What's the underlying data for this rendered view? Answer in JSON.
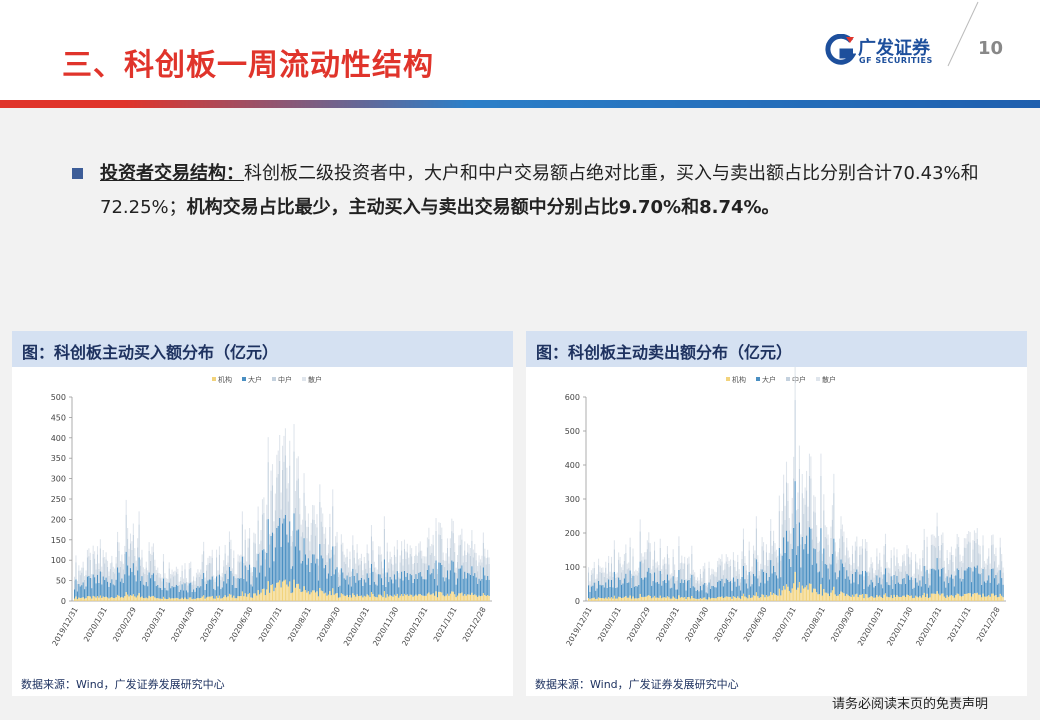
{
  "header": {
    "title": "三、科创板一周流动性结构",
    "logo_cn": "广发证券",
    "logo_en": "GF SECURITIES",
    "page_number": "10"
  },
  "bullet": {
    "key_label": "投资者交易结构：",
    "text1": "科创板二级投资者中，大户和中户交易额占绝对比重，买入与卖出额占比分别合计70.43%和72.25%；",
    "text2": "机构交易占比最少，主动买入与卖出交易额中分别占比9.70%和8.74%。"
  },
  "colors": {
    "title_red": "#e0342b",
    "inst": "#f2d37c",
    "large": "#4a8fc2",
    "medium": "#c4d1de",
    "retail": "#dfe5ec"
  },
  "chart_data": [
    {
      "type": "area",
      "title": "图：科创板主动买入额分布（亿元）",
      "source": "数据来源：Wind，广发证券发展研究中心",
      "legend": [
        "机构",
        "大户",
        "中户",
        "散户"
      ],
      "legend_position": "top-center",
      "ylim": [
        0,
        500
      ],
      "yticks": [
        0,
        50,
        100,
        150,
        200,
        250,
        300,
        350,
        400,
        450,
        500
      ],
      "x": [
        "2019/12/31",
        "2020/1/31",
        "2020/2/29",
        "2020/3/31",
        "2020/4/30",
        "2020/5/31",
        "2020/6/30",
        "2020/7/31",
        "2020/8/31",
        "2020/9/30",
        "2020/10/31",
        "2020/11/30",
        "2020/12/31",
        "2021/1/31",
        "2021/2/28"
      ],
      "series": [
        {
          "name": "机构",
          "values": [
            8,
            9,
            12,
            8,
            7,
            10,
            14,
            40,
            22,
            14,
            12,
            13,
            15,
            17,
            14
          ]
        },
        {
          "name": "大户",
          "values": [
            30,
            40,
            55,
            35,
            28,
            38,
            50,
            120,
            75,
            45,
            38,
            42,
            48,
            55,
            45
          ]
        },
        {
          "name": "中户",
          "values": [
            30,
            38,
            50,
            33,
            28,
            36,
            46,
            110,
            72,
            43,
            37,
            40,
            46,
            52,
            44
          ]
        },
        {
          "name": "散户",
          "values": [
            12,
            15,
            20,
            14,
            12,
            15,
            18,
            50,
            30,
            18,
            15,
            17,
            20,
            22,
            18
          ]
        }
      ]
    },
    {
      "type": "area",
      "title": "图：科创板主动卖出额分布（亿元）",
      "source": "数据来源：Wind，广发证券发展研究中心",
      "legend": [
        "机构",
        "大户",
        "中户",
        "散户"
      ],
      "legend_position": "top-center",
      "ylim": [
        0,
        600
      ],
      "yticks": [
        0,
        100,
        200,
        300,
        400,
        500,
        600
      ],
      "x": [
        "2019/12/31",
        "2020/1/31",
        "2020/2/29",
        "2020/3/31",
        "2020/4/30",
        "2020/5/31",
        "2020/6/30",
        "2020/7/31",
        "2020/8/31",
        "2020/9/30",
        "2020/10/31",
        "2020/11/30",
        "2020/12/31",
        "2021/1/31",
        "2021/2/28"
      ],
      "series": [
        {
          "name": "机构",
          "values": [
            8,
            10,
            13,
            9,
            8,
            11,
            15,
            45,
            25,
            15,
            13,
            14,
            16,
            18,
            15
          ]
        },
        {
          "name": "大户",
          "values": [
            35,
            45,
            60,
            40,
            32,
            42,
            56,
            140,
            85,
            50,
            42,
            46,
            54,
            60,
            50
          ]
        },
        {
          "name": "中户",
          "values": [
            35,
            42,
            56,
            38,
            32,
            40,
            52,
            125,
            80,
            48,
            41,
            44,
            52,
            58,
            48
          ]
        },
        {
          "name": "散户",
          "values": [
            14,
            17,
            22,
            15,
            13,
            17,
            20,
            55,
            34,
            20,
            17,
            19,
            22,
            24,
            20
          ]
        }
      ]
    }
  ],
  "disclaimer": "请务必阅读末页的免责声明"
}
